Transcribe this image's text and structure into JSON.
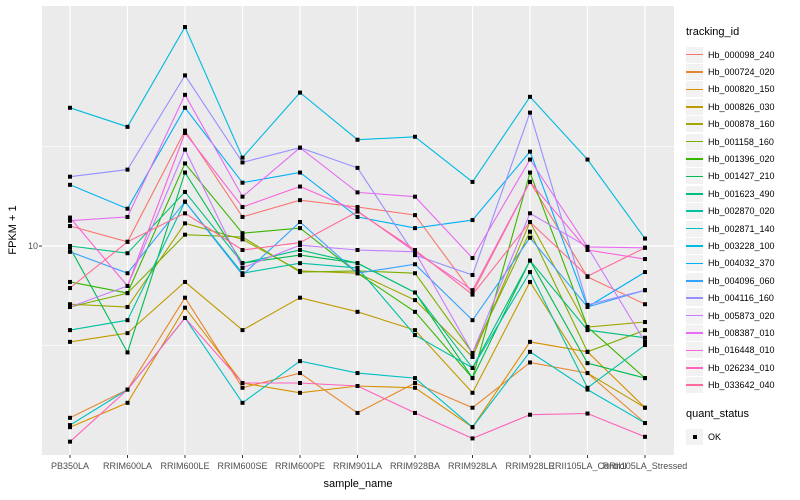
{
  "figure": {
    "y_axis": {
      "label": "FPKM + 1",
      "tick_labels": [
        "10"
      ]
    },
    "x_axis": {
      "label": "sample_name"
    },
    "legend": {
      "tracking_title": "tracking_id",
      "quant_title": "quant_status",
      "quant_label": "OK"
    },
    "colors": {
      "panel_bg": "#EBEBEB",
      "grid": "#FFFFFF",
      "tick_text": "#4D4D4D",
      "axis_text": "#000000",
      "marker": "#000000"
    }
  },
  "chart_data": {
    "type": "line",
    "title": "",
    "xlabel": "sample_name",
    "ylabel": "FPKM + 1",
    "y_scale": "log10",
    "labeled_y_ticks": [
      10
    ],
    "minor_gridlines_at": [
      3.162,
      31.62
    ],
    "ylim_log10": [
      -0.05,
      2.206
    ],
    "legend_position": "right",
    "point_marker": "filled-black-square",
    "quant_status_all": "OK",
    "categories": [
      "PB350LA",
      "RRIM600LA",
      "RRIM600LE",
      "RRIM600SE",
      "RRIM600PE",
      "RRIM901LA",
      "RRIM928BA",
      "RRIM928LA",
      "RRIM928LE",
      "RRII105LA_Control",
      "RRII105LA_Stressed"
    ],
    "series": [
      {
        "name": "Hb_000098_240",
        "color": "#F8766D",
        "values": [
          12.6,
          10.5,
          38,
          14,
          17,
          15.7,
          14.3,
          5.8,
          21,
          7.0,
          5.1
        ]
      },
      {
        "name": "Hb_000724_020",
        "color": "#E8862D",
        "values": [
          1.37,
          1.9,
          5.5,
          1.94,
          2.3,
          1.45,
          2.05,
          1.54,
          2.6,
          2.3,
          1.29
        ]
      },
      {
        "name": "Hb_000820_150",
        "color": "#D89000",
        "values": [
          1.23,
          1.63,
          4.9,
          2.05,
          1.83,
          1.98,
          1.94,
          1.23,
          3.3,
          2.94,
          1.54
        ]
      },
      {
        "name": "Hb_000826_030",
        "color": "#C09B00",
        "values": [
          3.3,
          3.65,
          6.6,
          3.78,
          5.5,
          4.67,
          3.78,
          1.83,
          6.6,
          2.3,
          1.54
        ]
      },
      {
        "name": "Hb_000878_160",
        "color": "#A3A500",
        "values": [
          5.1,
          4.94,
          13,
          10.8,
          7.5,
          7.3,
          5.35,
          2.77,
          13.2,
          3.92,
          4.15
        ]
      },
      {
        "name": "Hb_001158_160",
        "color": "#7CAE00",
        "values": [
          4.94,
          5.8,
          11.4,
          11.1,
          7.4,
          7.5,
          7.3,
          2.9,
          11.8,
          2.94,
          3.78
        ]
      },
      {
        "name": "Hb_001396_020",
        "color": "#39B600",
        "values": [
          6.6,
          5.8,
          26,
          11.6,
          12.3,
          7.3,
          4.67,
          2.17,
          23.4,
          3.92,
          2.17
        ]
      },
      {
        "name": "Hb_001427_210",
        "color": "#00BB4E",
        "values": [
          9.8,
          2.92,
          23.4,
          8.2,
          9.0,
          8.2,
          5.84,
          2.17,
          8.45,
          2.58,
          2.17
        ]
      },
      {
        "name": "Hb_001623_490",
        "color": "#00BF7D",
        "values": [
          10,
          9.2,
          18.7,
          8.2,
          9.55,
          8.2,
          5.84,
          2.44,
          8.45,
          3.78,
          3.46
        ]
      },
      {
        "name": "Hb_002870_020",
        "color": "#00C1A3",
        "values": [
          3.78,
          4.24,
          16.7,
          7.3,
          8.2,
          7.76,
          3.57,
          2.44,
          7.4,
          1.94,
          3.18
        ]
      },
      {
        "name": "Hb_002871_140",
        "color": "#00BFC4",
        "values": [
          1.26,
          1.9,
          4.35,
          1.63,
          2.64,
          2.3,
          2.17,
          1.23,
          2.94,
          1.9,
          1.29
        ]
      },
      {
        "name": "Hb_003228_100",
        "color": "#00BAE0",
        "values": [
          49.5,
          39.7,
          126,
          27.8,
          59,
          34.2,
          35.4,
          21,
          56.2,
          27.2,
          10.9
        ]
      },
      {
        "name": "Hb_004032_370",
        "color": "#00B0F6",
        "values": [
          20.3,
          15.4,
          49.5,
          20.8,
          23.4,
          14,
          12.3,
          13.5,
          29.8,
          4.94,
          7.4
        ]
      },
      {
        "name": "Hb_004096_060",
        "color": "#35A2FF",
        "values": [
          9.35,
          7.3,
          16.7,
          7.15,
          13.2,
          7.3,
          8.1,
          4.24,
          11,
          4.94,
          6.0
        ]
      },
      {
        "name": "Hb_004116_160",
        "color": "#9590FF",
        "values": [
          22.3,
          24.2,
          72,
          26.3,
          31.2,
          24.7,
          9.0,
          7.15,
          46.8,
          5.06,
          6.0
        ]
      },
      {
        "name": "Hb_005873_020",
        "color": "#C77CFF",
        "values": [
          4.94,
          6.3,
          30.5,
          7.76,
          10.1,
          9.55,
          9.35,
          2.9,
          14.6,
          9.9,
          3.3
        ]
      },
      {
        "name": "Hb_008387_010",
        "color": "#E76BF3",
        "values": [
          13.4,
          14,
          57.5,
          17.7,
          31.2,
          18.6,
          17.7,
          8.7,
          27.2,
          9.9,
          9.8
        ]
      },
      {
        "name": "Hb_016448_010",
        "color": "#FA62DB",
        "values": [
          13.9,
          6.3,
          37,
          15.7,
          19.9,
          15,
          9.35,
          6.0,
          21,
          9.55,
          8.6
        ]
      },
      {
        "name": "Hb_026234_010",
        "color": "#FF62BC",
        "values": [
          1.04,
          1.9,
          4.35,
          2.05,
          2.05,
          1.98,
          1.45,
          1.08,
          1.42,
          1.44,
          1.1
        ]
      },
      {
        "name": "Hb_033642_040",
        "color": "#FF6A98",
        "values": [
          6.15,
          10.5,
          14.6,
          9.55,
          10.4,
          14.9,
          9.55,
          5.7,
          13.2,
          7.05,
          9.8
        ]
      }
    ]
  }
}
